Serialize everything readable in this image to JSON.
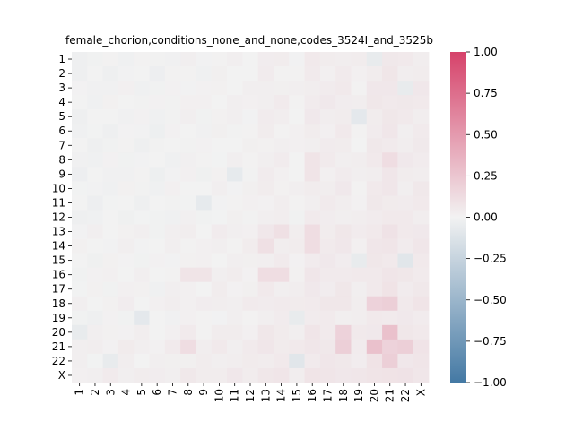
{
  "chart_data": {
    "type": "heatmap",
    "title": "female_chorion,conditions_none_and_none,codes_3524I_and_3525b",
    "xlabel": "",
    "ylabel": "",
    "categories": [
      "1",
      "2",
      "3",
      "4",
      "5",
      "6",
      "7",
      "8",
      "9",
      "10",
      "11",
      "12",
      "13",
      "14",
      "15",
      "16",
      "17",
      "18",
      "19",
      "20",
      "21",
      "22",
      "X"
    ],
    "colorbar": {
      "min": -1.0,
      "max": 1.0,
      "ticks": [
        "1.00",
        "0.75",
        "0.50",
        "0.25",
        "0.00",
        "−0.25",
        "−0.50",
        "−0.75",
        "−1.00"
      ],
      "low_color": "#4479a4",
      "mid_color": "#f2f2f2",
      "high_color": "#d6426a"
    },
    "row_bias": [
      0.0,
      -0.01,
      0.0,
      0.01,
      0.0,
      -0.01,
      -0.01,
      0.0,
      -0.01,
      0.0,
      -0.01,
      -0.01,
      0.03,
      0.02,
      0.01,
      0.03,
      0.02,
      0.04,
      0.0,
      0.04,
      0.06,
      0.04,
      0.07
    ],
    "col_bias": [
      -0.02,
      -0.02,
      -0.01,
      0.0,
      -0.01,
      -0.02,
      0.0,
      0.02,
      0.0,
      0.02,
      0.02,
      0.02,
      0.06,
      0.05,
      0.02,
      0.08,
      0.07,
      0.08,
      0.04,
      0.1,
      0.12,
      0.08,
      0.09
    ],
    "highlights": [
      {
        "row": "20",
        "col": "21",
        "value": 0.28
      },
      {
        "row": "18",
        "col": "21",
        "value": 0.22
      },
      {
        "row": "18",
        "col": "20",
        "value": 0.18
      },
      {
        "row": "21",
        "col": "18",
        "value": 0.2
      },
      {
        "row": "20",
        "col": "18",
        "value": 0.18
      },
      {
        "row": "21",
        "col": "21",
        "value": 0.18
      },
      {
        "row": "22",
        "col": "21",
        "value": 0.2
      },
      {
        "row": "8",
        "col": "21",
        "value": 0.15
      },
      {
        "row": "13",
        "col": "16",
        "value": 0.12
      },
      {
        "row": "14",
        "col": "16",
        "value": 0.12
      },
      {
        "row": "13",
        "col": "14",
        "value": 0.1
      },
      {
        "row": "14",
        "col": "13",
        "value": 0.1
      },
      {
        "row": "15",
        "col": "19",
        "value": -0.1
      },
      {
        "row": "15",
        "col": "22",
        "value": -0.1
      },
      {
        "row": "11",
        "col": "9",
        "value": -0.08
      },
      {
        "row": "9",
        "col": "11",
        "value": -0.07
      },
      {
        "row": "5",
        "col": "19",
        "value": -0.07
      },
      {
        "row": "19",
        "col": "5",
        "value": -0.08
      },
      {
        "row": "19",
        "col": "15",
        "value": -0.06
      },
      {
        "row": "1",
        "col": "20",
        "value": -0.06
      },
      {
        "row": "3",
        "col": "22",
        "value": -0.06
      },
      {
        "row": "16",
        "col": "8",
        "value": 0.08
      },
      {
        "row": "16",
        "col": "9",
        "value": 0.08
      },
      {
        "row": "21",
        "col": "8",
        "value": 0.12
      }
    ]
  }
}
